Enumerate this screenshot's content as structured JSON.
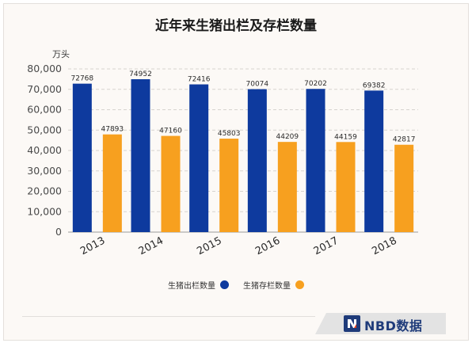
{
  "title": "近年来生猪出栏及存栏数量",
  "unit": "万头",
  "brand": {
    "name": "NBD数据",
    "logo_icon": "nbd-logo-icon"
  },
  "chart_data": {
    "type": "bar",
    "title": "近年来生猪出栏及存栏数量",
    "ylabel": "万头",
    "xlabel": "",
    "categories": [
      "2013",
      "2014",
      "2015",
      "2016",
      "2017",
      "2018"
    ],
    "series": [
      {
        "name": "生猪出栏数量",
        "color": "#0e3a9e",
        "values": [
          72768,
          74952,
          72416,
          70074,
          70202,
          69382
        ]
      },
      {
        "name": "生猪存栏数量",
        "color": "#f7a01f",
        "values": [
          47893,
          47160,
          45803,
          44209,
          44159,
          42817
        ]
      }
    ],
    "ylim": [
      0,
      80000
    ],
    "yticks": [
      "0",
      "10,000",
      "20,000",
      "30,000",
      "40,000",
      "50,000",
      "60,000",
      "70,000",
      "80,000"
    ],
    "grid": true,
    "legend_position": "bottom"
  }
}
